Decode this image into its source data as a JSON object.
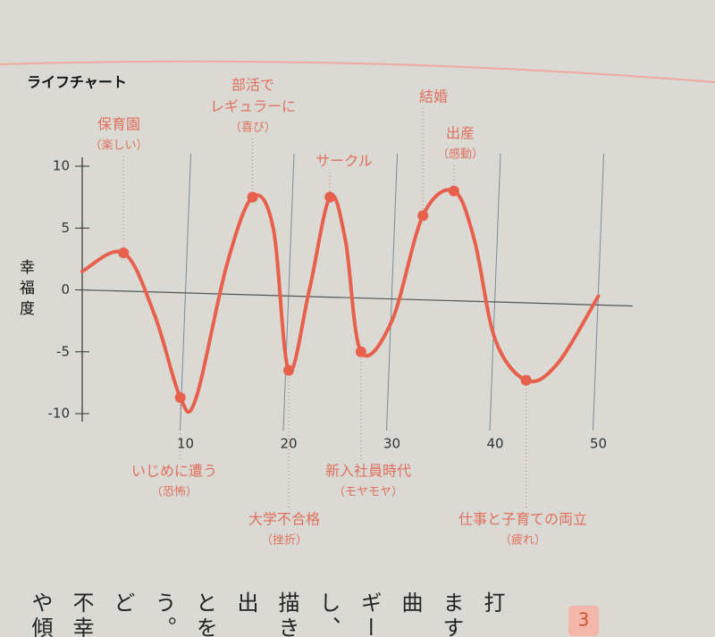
{
  "chart_data": {
    "type": "line",
    "title": "ライフチャート",
    "y_label": "幸福度",
    "xlim": [
      0,
      52
    ],
    "ylim": [
      -10,
      10
    ],
    "xticks": [
      10,
      20,
      30,
      40,
      50
    ],
    "yticks": [
      -10,
      -5,
      0,
      5,
      10
    ],
    "grid": true,
    "series": [
      {
        "color": "#e8604c",
        "x": [
          0,
          4,
          7,
          9.5,
          11,
          14,
          16.5,
          18.5,
          20,
          22,
          24,
          25.5,
          27,
          30,
          33,
          36,
          38,
          40,
          43,
          46,
          50
        ],
        "values": [
          1.5,
          3,
          -2,
          -8.7,
          -8.8,
          2,
          7.5,
          5,
          -6.5,
          0,
          7.5,
          4,
          -5,
          -2.5,
          6,
          8,
          4,
          -4,
          -7.3,
          -6,
          -0.5
        ]
      }
    ],
    "annotations": [
      {
        "text": [
          "保育園"
        ],
        "sub": "（楽しい）",
        "x": 4,
        "y": 3
      },
      {
        "text": [
          "いじめに遭う"
        ],
        "sub": "（恐怖）",
        "x": 9.5,
        "y": -8.7
      },
      {
        "text": [
          "部活で",
          "レギュラーに"
        ],
        "sub": "（喜び）",
        "x": 16.5,
        "y": 7.5
      },
      {
        "text": [
          "大学不合格"
        ],
        "sub": "（挫折）",
        "x": 20,
        "y": -6.5
      },
      {
        "text": [
          "サークル"
        ],
        "x": 24,
        "y": 7.5
      },
      {
        "text": [
          "新入社員時代"
        ],
        "sub": "（モヤモヤ）",
        "x": 27,
        "y": -5
      },
      {
        "text": [
          "結婚"
        ],
        "x": 33,
        "y": 6
      },
      {
        "text": [
          "出産"
        ],
        "sub": "（感動）",
        "x": 36,
        "y": 8
      },
      {
        "text": [
          "仕事と子育ての両立"
        ],
        "sub": "（疲れ）",
        "x": 43,
        "y": -7.3
      }
    ]
  },
  "footer_columns": [
    "や傾",
    "不幸",
    "ど",
    "う。",
    "とを",
    "出",
    "描き",
    "し、",
    "ギー",
    "曲",
    "ます",
    "打"
  ],
  "page_number": "3"
}
